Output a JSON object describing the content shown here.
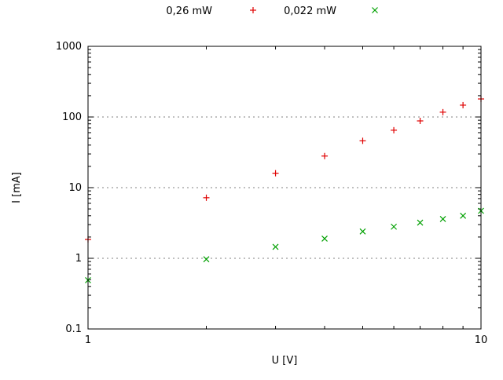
{
  "chart_data": {
    "type": "scatter",
    "title": "",
    "xlabel": "U [V]",
    "ylabel": "I [mA]",
    "x_scale": "log",
    "y_scale": "log",
    "xlim": [
      1,
      10
    ],
    "ylim": [
      0.1,
      1000
    ],
    "x_ticks": [
      1,
      10
    ],
    "x_tick_labels": [
      "1",
      "10"
    ],
    "y_ticks": [
      0.1,
      1,
      10,
      100,
      1000
    ],
    "y_tick_labels": [
      "0.1",
      "1",
      "10",
      "100",
      "1000"
    ],
    "grid": true,
    "legend_position": "top-center-outside",
    "background_color": "#ffffff",
    "border_color": "#000000",
    "grid_color": "#808080",
    "series": [
      {
        "name": "0,26 mW",
        "marker": "plus",
        "color": "#e00000",
        "x": [
          1,
          2,
          3,
          4,
          5,
          6,
          7,
          8,
          9,
          10
        ],
        "y": [
          1.85,
          7.2,
          16,
          28,
          46,
          65,
          88,
          117,
          147,
          180
        ]
      },
      {
        "name": "0,022 mW",
        "marker": "cross",
        "color": "#00a000",
        "x": [
          1,
          2,
          3,
          4,
          5,
          6,
          7,
          8,
          9,
          10
        ],
        "y": [
          0.49,
          0.97,
          1.45,
          1.9,
          2.4,
          2.8,
          3.2,
          3.6,
          4.0,
          4.7
        ]
      }
    ]
  }
}
